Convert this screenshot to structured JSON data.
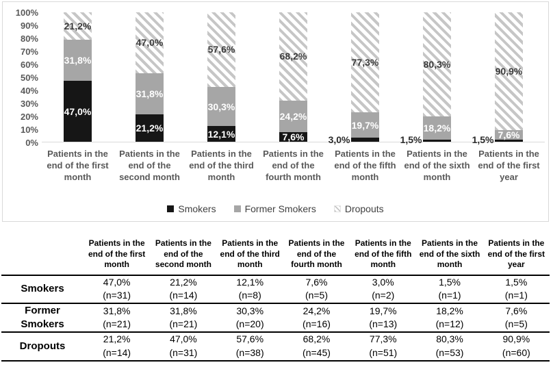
{
  "chart_data": {
    "type": "bar",
    "variant": "stacked-100",
    "title": "",
    "xlabel": "",
    "ylabel": "",
    "ylim": [
      0,
      100
    ],
    "grid": false,
    "legend_position": "bottom",
    "y_ticks": [
      "100%",
      "90%",
      "80%",
      "70%",
      "60%",
      "50%",
      "40%",
      "30%",
      "20%",
      "10%",
      "0%"
    ],
    "categories": [
      "Patients in the end of the first month",
      "Patients in the end of the second month",
      "Patients in the end of the third month",
      "Patients in the end of the fourth month",
      "Patients in the end of the fifth month",
      "Patients in the end of the sixth month",
      "Patients in the end of the first year"
    ],
    "series": [
      {
        "name": "Smokers",
        "style": "solid-black",
        "color": "#161616",
        "values": [
          47.0,
          21.2,
          12.1,
          7.6,
          3.0,
          1.5,
          1.5
        ],
        "labels": [
          "47,0%",
          "21,2%",
          "12,1%",
          "7,6%",
          "3,0%",
          "1,5%",
          "1,5%"
        ]
      },
      {
        "name": "Former Smokers",
        "style": "solid-gray",
        "color": "#a6a6a6",
        "values": [
          31.8,
          31.8,
          30.3,
          24.2,
          19.7,
          18.2,
          7.6
        ],
        "labels": [
          "31,8%",
          "31,8%",
          "30,3%",
          "24,2%",
          "19,7%",
          "18,2%",
          "7,6%"
        ]
      },
      {
        "name": "Dropouts",
        "style": "diagonal-hatch",
        "color": "#c6c6c6",
        "values": [
          21.2,
          47.0,
          57.6,
          68.2,
          77.3,
          80.3,
          90.9
        ],
        "labels": [
          "21,2%",
          "47,0%",
          "57,6%",
          "68,2%",
          "77,3%",
          "80,3%",
          "90,9%"
        ]
      }
    ]
  },
  "table": {
    "corner_header": "",
    "columns": [
      "Patients in the end of the first month",
      "Patients in the end of the second month",
      "Patients in the end of the third month",
      "Patients in the end of the fourth month",
      "Patients in the end of the fifth month",
      "Patients in the end of the sixth month",
      "Patients in the end of the first year"
    ],
    "rows": [
      {
        "label": "Smokers",
        "cells": [
          {
            "pct": "47,0%",
            "n": "(n=31)"
          },
          {
            "pct": "21,2%",
            "n": "(n=14)"
          },
          {
            "pct": "12,1%",
            "n": "(n=8)"
          },
          {
            "pct": "7,6%",
            "n": "(n=5)"
          },
          {
            "pct": "3,0%",
            "n": "(n=2)"
          },
          {
            "pct": "1,5%",
            "n": "(n=1)"
          },
          {
            "pct": "1,5%",
            "n": "(n=1)"
          }
        ]
      },
      {
        "label": "Former Smokers",
        "cells": [
          {
            "pct": "31,8%",
            "n": "(n=21)"
          },
          {
            "pct": "31,8%",
            "n": "(n=21)"
          },
          {
            "pct": "30,3%",
            "n": "(n=20)"
          },
          {
            "pct": "24,2%",
            "n": "(n=16)"
          },
          {
            "pct": "19,7%",
            "n": "(n=13)"
          },
          {
            "pct": "18,2%",
            "n": "(n=12)"
          },
          {
            "pct": "7,6%",
            "n": "(n=5)"
          }
        ]
      },
      {
        "label": "Dropouts",
        "cells": [
          {
            "pct": "21,2%",
            "n": "(n=14)"
          },
          {
            "pct": "47,0%",
            "n": "(n=31)"
          },
          {
            "pct": "57,6%",
            "n": "(n=38)"
          },
          {
            "pct": "68,2%",
            "n": "(n=45)"
          },
          {
            "pct": "77,3%",
            "n": "(n=51)"
          },
          {
            "pct": "80,3%",
            "n": "(n=53)"
          },
          {
            "pct": "90,9%",
            "n": "(n=60)"
          }
        ]
      }
    ]
  },
  "colors": {
    "smokers": "#161616",
    "former_smokers": "#a6a6a6",
    "hatch_stroke": "#c6c6c6",
    "axis_text": "#595959",
    "chart_border": "#d9d9d9",
    "table_rule": "#000000"
  }
}
